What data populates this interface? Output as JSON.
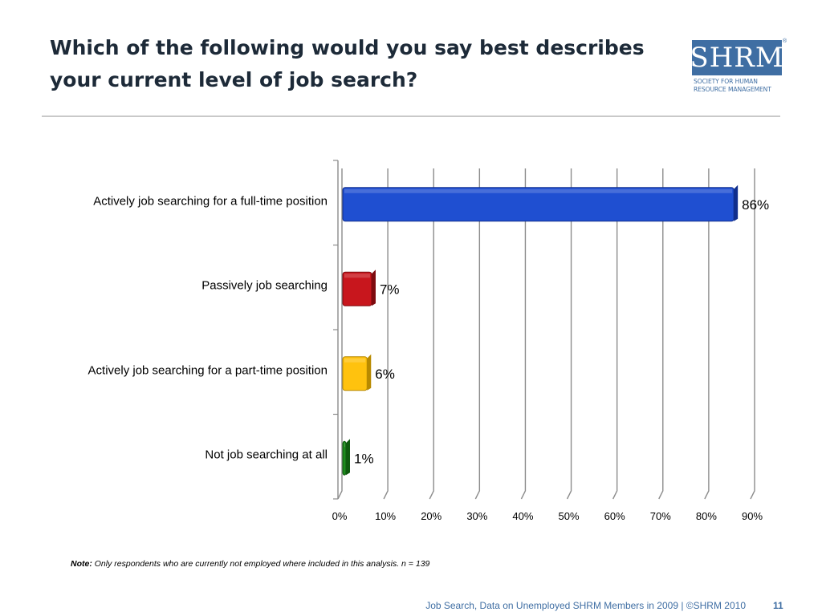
{
  "title": {
    "line1": "Which of the following would you say best describes",
    "line2": "your current level of job search?"
  },
  "logo": {
    "mark": "SHRM",
    "registered": "®",
    "tagline_line1": "Society for Human",
    "tagline_line2": "Resource Management"
  },
  "note": {
    "label": "Note:",
    "text": " Only respondents who are currently not employed where included in this analysis. n = 139"
  },
  "footer": {
    "text": "Job Search, Data on Unemployed SHRM Members in 2009 | ©SHRM 2010",
    "page": "11"
  },
  "chart_data": {
    "type": "bar",
    "orientation": "horizontal",
    "categories": [
      "Actively job searching for a full-time position",
      "Passively job searching",
      "Actively job searching for a part-time position",
      "Not job searching at all"
    ],
    "values": [
      86,
      7,
      6,
      1
    ],
    "value_labels": [
      "86%",
      "7%",
      "6%",
      "1%"
    ],
    "colors": [
      "#1f4fd1",
      "#c8161d",
      "#ffc20e",
      "#1e8a1e"
    ],
    "side_colors": [
      "#102e8c",
      "#7e0b0f",
      "#b88a00",
      "#0f5a0f"
    ],
    "x_ticks": [
      "0%",
      "10%",
      "20%",
      "30%",
      "40%",
      "50%",
      "60%",
      "70%",
      "80%",
      "90%"
    ],
    "xlim": [
      0,
      90
    ],
    "grid": true
  }
}
